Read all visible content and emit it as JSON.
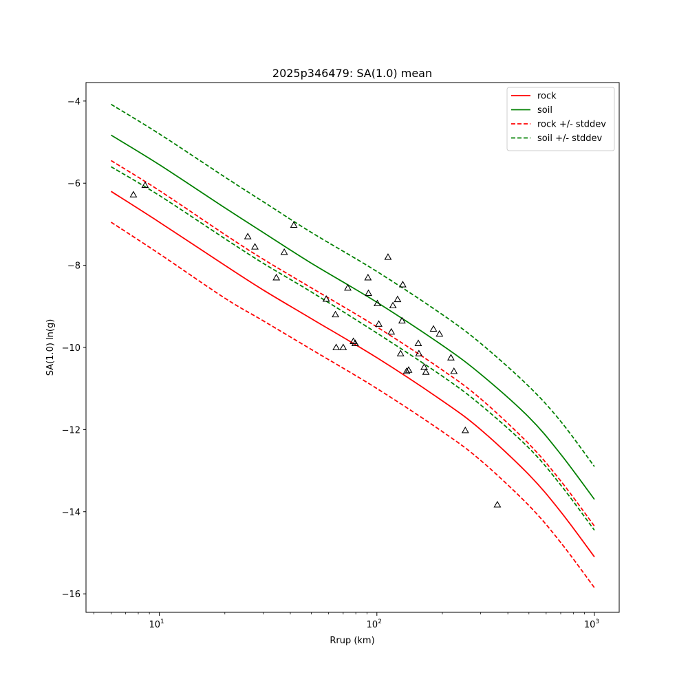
{
  "chart_data": {
    "type": "line",
    "title": "2025p346479: SA(1.0) mean",
    "xlabel": "Rrup (km)",
    "ylabel": "SA(1.0) ln(g)",
    "xscale": "log",
    "xlim": [
      4.6,
      1300
    ],
    "ylim": [
      -16.45,
      -3.55
    ],
    "x_ticks": [
      10,
      100,
      1000
    ],
    "x_tick_labels": [
      "10^1",
      "10^2",
      "10^3"
    ],
    "y_ticks": [
      -16,
      -14,
      -12,
      -10,
      -8,
      -6,
      -4
    ],
    "y_tick_labels": [
      "−16",
      "−14",
      "−12",
      "−10",
      "−8",
      "−6",
      "−4"
    ],
    "legend_position": "top-right",
    "grid": false,
    "x": [
      6,
      10,
      20,
      30,
      50,
      100,
      200,
      300,
      500,
      700,
      1000
    ],
    "series": [
      {
        "name": "rock",
        "style": "solid",
        "color": "#ff0000",
        "values": [
          -6.2,
          -6.95,
          -8.0,
          -8.6,
          -9.3,
          -10.25,
          -11.3,
          -12.0,
          -13.1,
          -14.0,
          -15.1
        ]
      },
      {
        "name": "soil",
        "style": "solid",
        "color": "#008000",
        "values": [
          -4.83,
          -5.55,
          -6.6,
          -7.2,
          -7.95,
          -8.9,
          -9.95,
          -10.65,
          -11.7,
          -12.6,
          -13.7
        ]
      },
      {
        "name": "rock +/- stddev",
        "style": "dashed",
        "color": "#ff0000",
        "values": [
          -5.45,
          -6.18,
          -7.25,
          -7.85,
          -8.55,
          -9.5,
          -10.55,
          -11.25,
          -12.35,
          -13.25,
          -14.35
        ]
      },
      {
        "name": "rock +/- stddev",
        "style": "dashed",
        "color": "#ff0000",
        "legend": false,
        "values": [
          -6.95,
          -7.72,
          -8.8,
          -9.35,
          -10.05,
          -11.0,
          -12.05,
          -12.75,
          -13.85,
          -14.75,
          -15.85
        ]
      },
      {
        "name": "soil +/- stddev",
        "style": "dashed",
        "color": "#008000",
        "values": [
          -5.6,
          -6.3,
          -7.35,
          -7.95,
          -8.65,
          -9.65,
          -10.7,
          -11.4,
          -12.45,
          -13.35,
          -14.45
        ]
      },
      {
        "name": "soil +/- stddev",
        "style": "dashed",
        "color": "#008000",
        "legend": false,
        "values": [
          -4.08,
          -4.8,
          -5.85,
          -6.45,
          -7.2,
          -8.15,
          -9.2,
          -9.9,
          -10.95,
          -11.8,
          -12.9
        ]
      }
    ],
    "observations": {
      "marker": "triangle-open",
      "color": "#000000",
      "points": [
        [
          7.6,
          -6.28
        ],
        [
          8.6,
          -6.05
        ],
        [
          25.5,
          -7.3
        ],
        [
          27.5,
          -7.55
        ],
        [
          34.5,
          -8.3
        ],
        [
          37.5,
          -7.68
        ],
        [
          41.5,
          -7.02
        ],
        [
          58.5,
          -8.82
        ],
        [
          64.5,
          -9.2
        ],
        [
          65,
          -10.0
        ],
        [
          70,
          -10.0
        ],
        [
          73.5,
          -8.55
        ],
        [
          78,
          -9.85
        ],
        [
          79.5,
          -9.9
        ],
        [
          91,
          -8.3
        ],
        [
          91.5,
          -8.68
        ],
        [
          100.5,
          -8.93
        ],
        [
          102,
          -9.43
        ],
        [
          112.5,
          -7.8
        ],
        [
          116.5,
          -9.62
        ],
        [
          118.5,
          -8.98
        ],
        [
          124.5,
          -8.83
        ],
        [
          128.5,
          -10.15
        ],
        [
          130.5,
          -9.35
        ],
        [
          131.5,
          -8.47
        ],
        [
          137,
          -10.58
        ],
        [
          140,
          -10.55
        ],
        [
          155,
          -9.9
        ],
        [
          156,
          -10.15
        ],
        [
          165,
          -10.48
        ],
        [
          168,
          -10.6
        ],
        [
          182,
          -9.55
        ],
        [
          194,
          -9.67
        ],
        [
          219,
          -10.25
        ],
        [
          226,
          -10.58
        ],
        [
          255,
          -12.02
        ],
        [
          358,
          -13.83
        ]
      ]
    }
  }
}
